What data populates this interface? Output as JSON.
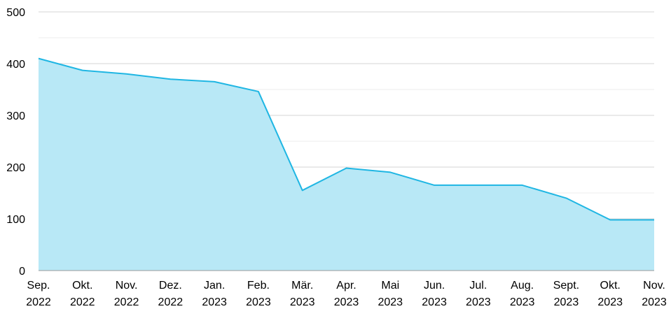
{
  "chart_data": {
    "type": "area",
    "title": "",
    "xlabel": "",
    "ylabel": "",
    "categories": [
      [
        "Sep.",
        "2022"
      ],
      [
        "Okt.",
        "2022"
      ],
      [
        "Nov.",
        "2022"
      ],
      [
        "Dez.",
        "2022"
      ],
      [
        "Jan.",
        "2023"
      ],
      [
        "Feb.",
        "2023"
      ],
      [
        "Mär.",
        "2023"
      ],
      [
        "Apr.",
        "2023"
      ],
      [
        "Mai",
        "2023"
      ],
      [
        "Jun.",
        "2023"
      ],
      [
        "Jul.",
        "2023"
      ],
      [
        "Aug.",
        "2023"
      ],
      [
        "Sept.",
        "2023"
      ],
      [
        "Okt.",
        "2023"
      ],
      [
        "Nov.",
        "2023"
      ]
    ],
    "series": [
      {
        "values": [
          410,
          387,
          380,
          370,
          365,
          346,
          155,
          198,
          190,
          165,
          165,
          165,
          140,
          98,
          98
        ]
      }
    ],
    "ylim": [
      0,
      500
    ],
    "yticks": [
      0,
      100,
      200,
      300,
      400,
      500
    ],
    "grid": true,
    "colors": {
      "line": "#1fb6e3",
      "fill": "#b8e8f6",
      "grid_major": "#d4d4d4",
      "grid_minor": "#ececec",
      "axis": "#9a9a9a"
    }
  }
}
